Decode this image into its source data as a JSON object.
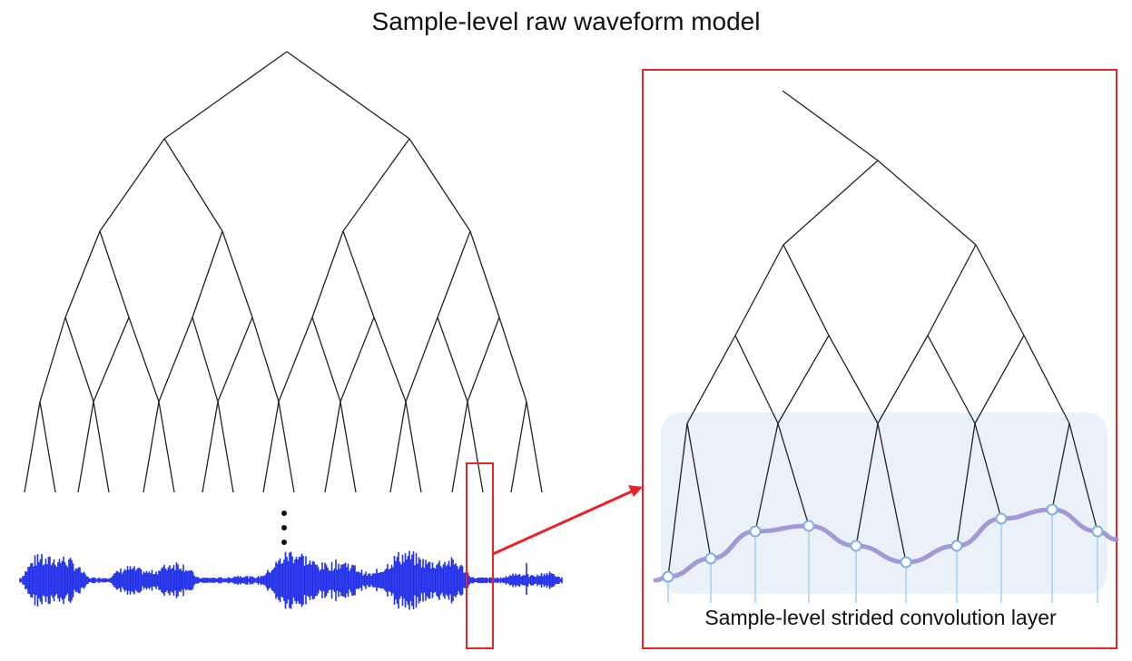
{
  "title": "Sample-level raw waveform model",
  "zoom_label": "Sample-level strided convolution layer",
  "ellipsis": "⋮",
  "colors": {
    "tree": "#222222",
    "highlight": "#e8232a",
    "waveform": "#1f2ee8",
    "layer_panel": "#eaf1f9",
    "wave_curve": "#9b8fd0",
    "sample_dot_fill": "#ffffff",
    "sample_dot_stroke": "#7fb2e0"
  }
}
